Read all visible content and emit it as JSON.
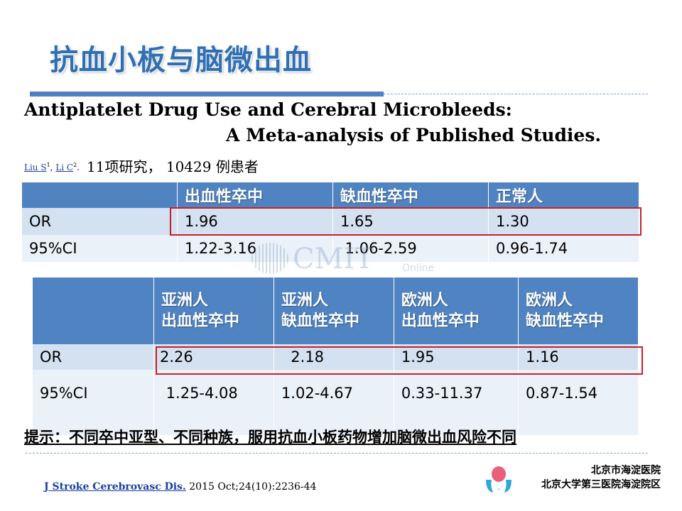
{
  "slide": {
    "title": "抗血小板与脑微出血",
    "paper_title_line1": "Antiplatelet Drug Use and Cerebral Microbleeds:",
    "paper_title_line2": "A Meta-analysis of Published Studies.",
    "authors": [
      {
        "name": "Liu S",
        "sup": "1"
      },
      {
        "name": "Li C",
        "sup": "2"
      }
    ],
    "author_sep": ", ",
    "author_end": ".",
    "summary": "11项研究， 10429 例患者"
  },
  "table1": {
    "header": [
      "",
      "出血性卒中",
      "缺血性卒中",
      "正常人"
    ],
    "rows": [
      [
        "OR",
        "1.96",
        "1.65",
        "1.30"
      ],
      [
        "95%CI",
        "1.22-3.16",
        " 1.06-2.59",
        "0.96-1.74"
      ]
    ]
  },
  "table2": {
    "header": [
      [
        "",
        ""
      ],
      [
        "亚洲人",
        "出血性卒中"
      ],
      [
        "亚洲人",
        "缺血性卒中"
      ],
      [
        "欧洲人",
        "出血性卒中"
      ],
      [
        "欧洲人",
        "缺血性卒中"
      ]
    ],
    "rows": [
      [
        "OR",
        "2.26",
        "  2.18",
        "1.95",
        "1.16"
      ],
      [
        "95%CI",
        " 1.25-4.08",
        "1.02-4.67",
        "0.33-11.37",
        "0.87-1.54"
      ]
    ]
  },
  "watermark": {
    "text": "CMIT",
    "sub": "Online"
  },
  "tip": "提示：不同卒中亚型、不同种族，服用抗血小板药物增加脑微出血风险不同",
  "footer": {
    "journal_link": "J Stroke Cerebrovasc Dis.",
    "citation": " 2015 Oct;24(10):2236-44",
    "hospital_line1": "北京市海淀医院",
    "hospital_line2": "北京大学第三医院海淀院区"
  },
  "colors": {
    "title": "#2f6fb3",
    "header_bg": "#4f83c2",
    "row_dark": "#d4e1f0",
    "row_light": "#ebf1f8",
    "highlight_border": "#c8202a",
    "link": "#1a3fa0"
  }
}
